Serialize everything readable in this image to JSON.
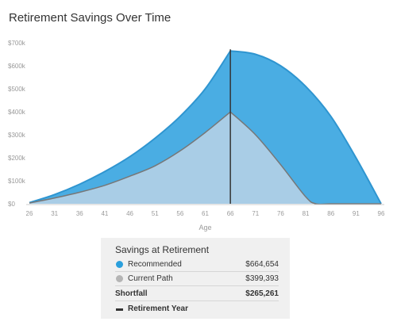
{
  "title": "Retirement Savings Over Time",
  "chart_data": {
    "type": "area",
    "xlabel": "Age",
    "xlim": [
      26,
      96
    ],
    "ylim": [
      0,
      700000
    ],
    "x_ticks": [
      26,
      31,
      36,
      41,
      46,
      51,
      56,
      61,
      66,
      71,
      76,
      81,
      86,
      91,
      96
    ],
    "y_ticks": [
      0,
      100000,
      200000,
      300000,
      400000,
      500000,
      600000,
      700000
    ],
    "y_tick_labels": [
      "$0",
      "$100k",
      "$200k",
      "$300k",
      "$400k",
      "$500k",
      "$600k",
      "$700k"
    ],
    "retirement_age": 66,
    "series": [
      {
        "name": "Recommended",
        "color": "#4aade3",
        "x": [
          26,
          31,
          36,
          41,
          46,
          51,
          56,
          61,
          66,
          71,
          76,
          81,
          86,
          91,
          96
        ],
        "values": [
          5000,
          40000,
          85000,
          140000,
          205000,
          285000,
          380000,
          500000,
          664654,
          650000,
          600000,
          510000,
          380000,
          200000,
          0
        ]
      },
      {
        "name": "Current Path",
        "color": "#a9cde6",
        "x": [
          26,
          31,
          36,
          41,
          46,
          51,
          56,
          61,
          66,
          71,
          76,
          81,
          83,
          86,
          91,
          96
        ],
        "values": [
          3000,
          25000,
          50000,
          80000,
          120000,
          165000,
          230000,
          310000,
          399393,
          300000,
          170000,
          30000,
          0,
          0,
          0,
          0
        ]
      }
    ],
    "grid": false
  },
  "summary": {
    "title": "Savings at Retirement",
    "recommended_label": "Recommended",
    "recommended_value": "$664,654",
    "recommended_color": "#2a9fdc",
    "current_label": "Current Path",
    "current_value": "$399,393",
    "current_color": "#b5b5b5",
    "shortfall_label": "Shortfall",
    "shortfall_value": "$265,261",
    "retirement_label": "Retirement Year"
  }
}
